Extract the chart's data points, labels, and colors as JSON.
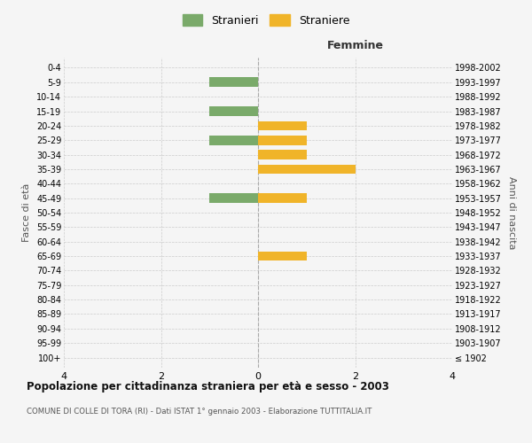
{
  "age_groups": [
    "100+",
    "95-99",
    "90-94",
    "85-89",
    "80-84",
    "75-79",
    "70-74",
    "65-69",
    "60-64",
    "55-59",
    "50-54",
    "45-49",
    "40-44",
    "35-39",
    "30-34",
    "25-29",
    "20-24",
    "15-19",
    "10-14",
    "5-9",
    "0-4"
  ],
  "birth_years": [
    "≤ 1902",
    "1903-1907",
    "1908-1912",
    "1913-1917",
    "1918-1922",
    "1923-1927",
    "1928-1932",
    "1933-1937",
    "1938-1942",
    "1943-1947",
    "1948-1952",
    "1953-1957",
    "1958-1962",
    "1963-1967",
    "1968-1972",
    "1973-1977",
    "1978-1982",
    "1983-1987",
    "1988-1992",
    "1993-1997",
    "1998-2002"
  ],
  "stranieri": [
    0,
    0,
    0,
    0,
    0,
    0,
    0,
    0,
    0,
    0,
    0,
    1,
    0,
    0,
    0,
    1,
    0,
    1,
    0,
    1,
    0
  ],
  "straniere": [
    0,
    0,
    0,
    0,
    0,
    0,
    0,
    1,
    0,
    0,
    0,
    1,
    0,
    2,
    1,
    1,
    1,
    0,
    0,
    0,
    0
  ],
  "color_stranieri": "#7aaa6a",
  "color_straniere": "#f0b429",
  "xlim": 4,
  "title": "Popolazione per cittadinanza straniera per età e sesso - 2003",
  "subtitle": "COMUNE DI COLLE DI TORA (RI) - Dati ISTAT 1° gennaio 2003 - Elaborazione TUTTITALIA.IT",
  "ylabel_left": "Fasce di età",
  "ylabel_right": "Anni di nascita",
  "label_femmine": "Femmine",
  "legend_stranieri": "Stranieri",
  "legend_straniere": "Straniere",
  "background_color": "#f5f5f5",
  "grid_color": "#cccccc",
  "bar_height": 0.65
}
